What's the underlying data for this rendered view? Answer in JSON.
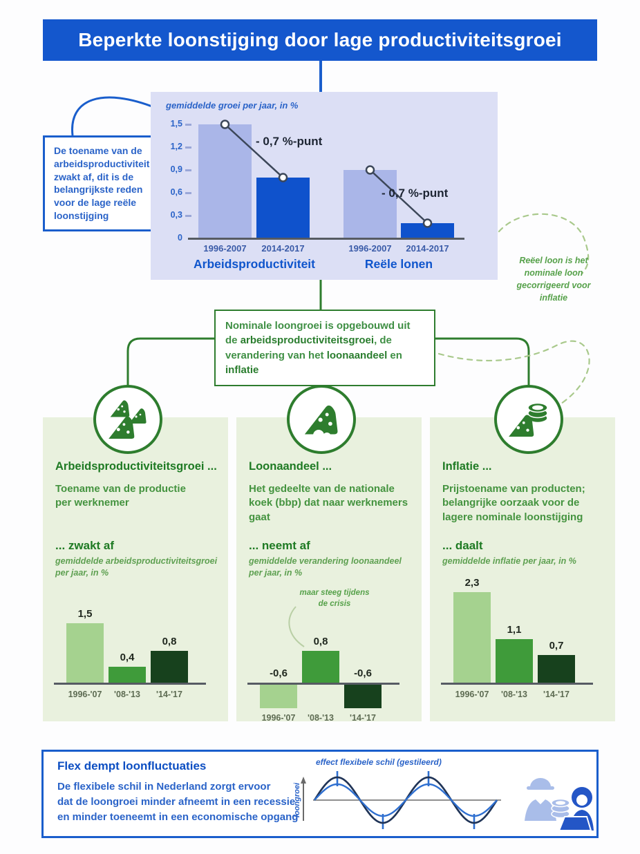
{
  "colors": {
    "header_blue": "#1457cd",
    "chart_panel_bg": "#dcdff5",
    "bar_light_blue": "#aab6e8",
    "bar_dark_blue": "#0f52cc",
    "text_blue": "#2a63c8",
    "green_border": "#2e7d2e",
    "green_heading": "#1e7a23",
    "green_body": "#44933f",
    "panel_green_bg": "#e9f1de",
    "bar_light_green": "#a5d28f",
    "bar_mid_green": "#3f9b3a",
    "bar_dark_green": "#17411d"
  },
  "header": {
    "title": "Beperkte loonstijging door lage productiviteitsgroei"
  },
  "callout": {
    "text": "De toename van de arbeidsproductiviteit zwakt af, dit is de belangrijkste reden voor de lage reële loonstijging"
  },
  "formula": {
    "pre": "Nominale loongroei is opgebouwd uit de ",
    "bold_1": "arbeidsproductiviteitsgroei",
    "mid_1": ", de verandering van het ",
    "bold_2": "loonaandeel",
    "mid_2": " en ",
    "bold_3": "inflatie"
  },
  "note": {
    "text": "Reëel loon is het nominale loon gecorrigeerd voor inflatie"
  },
  "panels": [
    {
      "heading": "Arbeidsproductiviteitsgroei ...",
      "body": "Toename van de productie per werknemer",
      "subheading": "... zwakt af"
    },
    {
      "heading": "Loonaandeel ...",
      "body": "Het gedeelte van de nationale koek (bbp) dat naar werknemers gaat",
      "subheading": "... neemt af"
    },
    {
      "heading": "Inflatie ...",
      "body": "Prijstoename van producten; belangrijke oorzaak voor de lagere nominale loonstijging",
      "subheading": "... daalt"
    }
  ],
  "flex": {
    "heading": "Flex dempt loonfluctuaties",
    "body_lines": [
      "De flexibele schil in Nederland zorgt ervoor",
      "dat de loongroei minder afneemt in een recessie",
      "en minder toeneemt in een economische opgang"
    ]
  },
  "chart_data": [
    {
      "id": "hoofdgrafiek",
      "type": "bar",
      "title": "gemiddelde groei per jaar, in %",
      "ylim": [
        0,
        1.5
      ],
      "ytick_labels": [
        "1,5",
        "1,2",
        "0,9",
        "0,6",
        "0,3",
        "0"
      ],
      "grid": false,
      "groups": [
        {
          "label": "Arbeidsproductiviteit",
          "categories": [
            "1996-2007",
            "2014-2017"
          ],
          "values": [
            1.5,
            0.8
          ],
          "annotation": "- 0,7 %-punt"
        },
        {
          "label": "Reële lonen",
          "categories": [
            "1996-2007",
            "2014-2017"
          ],
          "values": [
            0.9,
            0.2
          ],
          "annotation": "- 0,7 %-punt"
        }
      ]
    },
    {
      "id": "arbeidsproductiviteitsgroei",
      "type": "bar",
      "title": "gemiddelde arbeidsproductiviteitsgroei per jaar, in %",
      "categories": [
        "1996-'07",
        "'08-'13",
        "'14-'17"
      ],
      "values": [
        1.5,
        0.4,
        0.8
      ],
      "value_labels": [
        "1,5",
        "0,4",
        "0,8"
      ]
    },
    {
      "id": "loonaandeel",
      "type": "bar",
      "title": "gemiddelde verandering loonaandeel per jaar, in %",
      "categories": [
        "1996-'07",
        "'08-'13",
        "'14-'17"
      ],
      "values": [
        -0.6,
        0.8,
        -0.6
      ],
      "value_labels": [
        "-0,6",
        "0,8",
        "-0,6"
      ],
      "annotation": "maar steeg tijdens de crisis"
    },
    {
      "id": "inflatie",
      "type": "bar",
      "title": "gemiddelde inflatie per jaar, in %",
      "categories": [
        "1996-'07",
        "'08-'13",
        "'14-'17"
      ],
      "values": [
        2.3,
        1.1,
        0.7
      ],
      "value_labels": [
        "2,3",
        "1,1",
        "0,7"
      ]
    },
    {
      "id": "flex-golf",
      "type": "line",
      "title": "effect flexibele schil (gestileerd)",
      "ylabel": "loongroei",
      "description": "twee gestileerde golven: loongroei met grote amplitude en gedempte loongroei met kleinere amplitude"
    }
  ]
}
